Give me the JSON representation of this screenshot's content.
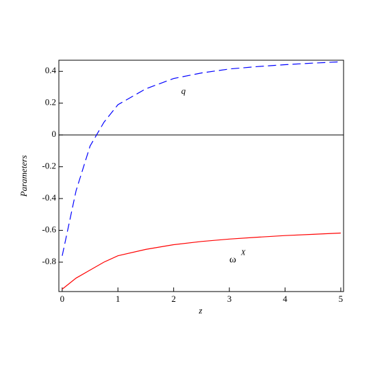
{
  "chart_data": {
    "type": "line",
    "x_label": "z",
    "y_label": "Parameters",
    "x": [
      0,
      0.25,
      0.5,
      0.75,
      1,
      1.5,
      2,
      2.5,
      3,
      3.5,
      4,
      4.5,
      5
    ],
    "series": [
      {
        "name": "q",
        "color": "#0000ff",
        "dashed": true,
        "values": [
          -0.76,
          -0.35,
          -0.07,
          0.08,
          0.19,
          0.29,
          0.355,
          0.39,
          0.415,
          0.43,
          0.442,
          0.452,
          0.46
        ]
      },
      {
        "name": "ω",
        "superscript": "X",
        "color": "#ff0000",
        "dashed": false,
        "values": [
          -0.97,
          -0.9,
          -0.85,
          -0.8,
          -0.76,
          -0.72,
          -0.69,
          -0.67,
          -0.655,
          -0.643,
          -0.633,
          -0.625,
          -0.617
        ]
      }
    ],
    "reference_line": {
      "value": 0,
      "color": "#000000"
    },
    "xlim": [
      -0.06,
      5.05
    ],
    "ylim": [
      -0.985,
      0.47
    ],
    "xticks": [
      0,
      1,
      2,
      3,
      4,
      5
    ],
    "yticks": [
      0.4,
      0.2,
      0,
      -0.2,
      -0.4,
      -0.6,
      -0.8
    ]
  }
}
